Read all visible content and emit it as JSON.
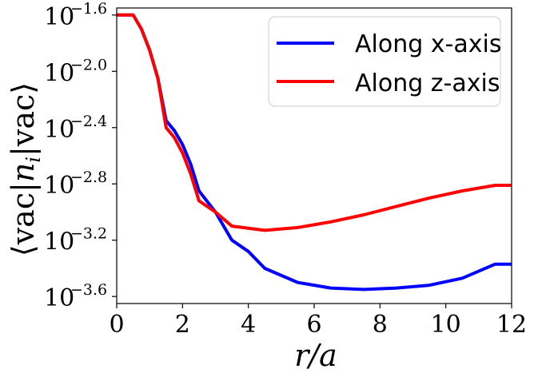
{
  "chart_data": {
    "type": "line",
    "xlabel": "r/a",
    "ylabel": "⟨vac|n_i|vac⟩",
    "xlim": [
      0,
      12
    ],
    "ylim_log10": [
      -3.65,
      -1.55
    ],
    "y_scale": "log10",
    "x_ticks": [
      0,
      2,
      4,
      6,
      8,
      10,
      12
    ],
    "y_tick_exponents": [
      -1.6,
      -2.0,
      -2.4,
      -2.8,
      -3.2,
      -3.6
    ],
    "y_tick_base": "10",
    "y_tick_exponent_labels": [
      "−1.6",
      "−2.0",
      "−2.4",
      "−2.8",
      "−3.2",
      "−3.6"
    ],
    "legend_position": "top-right",
    "series": [
      {
        "name": "Along x-axis",
        "color": "#0000ff",
        "x": [
          0,
          0.5,
          0.75,
          1.0,
          1.25,
          1.5,
          1.75,
          2.0,
          2.25,
          2.5,
          3.0,
          3.5,
          4.0,
          4.5,
          5.5,
          6.5,
          7.5,
          8.5,
          9.5,
          10.5,
          11.5,
          12.0
        ],
        "log10_y": [
          -1.6,
          -1.6,
          -1.7,
          -1.85,
          -2.05,
          -2.35,
          -2.42,
          -2.52,
          -2.66,
          -2.85,
          -3.0,
          -3.2,
          -3.28,
          -3.4,
          -3.5,
          -3.54,
          -3.55,
          -3.54,
          -3.52,
          -3.47,
          -3.37,
          -3.37
        ]
      },
      {
        "name": "Along z-axis",
        "color": "#ff0000",
        "x": [
          0,
          0.5,
          0.75,
          1.0,
          1.25,
          1.5,
          1.75,
          2.0,
          2.25,
          2.5,
          3.0,
          3.5,
          4.5,
          5.5,
          6.5,
          7.5,
          8.5,
          9.5,
          10.5,
          11.5,
          12.0
        ],
        "log10_y": [
          -1.6,
          -1.6,
          -1.7,
          -1.85,
          -2.05,
          -2.4,
          -2.47,
          -2.58,
          -2.73,
          -2.92,
          -3.0,
          -3.1,
          -3.13,
          -3.11,
          -3.07,
          -3.02,
          -2.96,
          -2.9,
          -2.85,
          -2.81,
          -2.81
        ]
      }
    ]
  }
}
